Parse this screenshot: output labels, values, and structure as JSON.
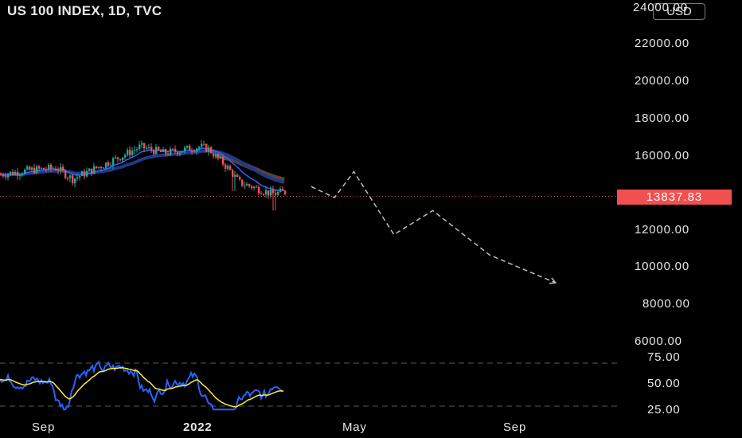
{
  "header": {
    "symbol_title": "US 100 INDEX, 1D, TVC"
  },
  "toolbar": {
    "currency_label": "USD"
  },
  "price_axis": {
    "ticks": [
      "24000.00",
      "22000.00",
      "20000.00",
      "18000.00",
      "16000.00",
      "12000.00",
      "10000.00",
      "8000.00",
      "6000.00"
    ],
    "last_price": "13837.83",
    "last_price_color": "#f0504f"
  },
  "rsi_axis": {
    "ticks": [
      "75.00",
      "50.00",
      "25.00"
    ]
  },
  "time_axis": {
    "labels": [
      "Sep",
      "2022",
      "May",
      "Sep"
    ]
  },
  "colors": {
    "background": "#000000",
    "up_candle": "#26a69a",
    "down_candle": "#ef5350",
    "ema_fast": "#2962ff",
    "ema_slow": "#1e3a8a",
    "sma_long": "#5d4037",
    "rsi_line": "#2962ff",
    "rsi_signal": "#ffeb3b",
    "projection": "#bdbdbd"
  },
  "chart_data": {
    "type": "candlestick",
    "title": "US 100 INDEX, 1D, TVC",
    "ylim": [
      6000,
      24000
    ],
    "last_price": 13837.83,
    "projection_path": [
      {
        "date": "2022-03-25",
        "value": 14400
      },
      {
        "date": "2022-04-12",
        "value": 13800
      },
      {
        "date": "2022-04-27",
        "value": 15200
      },
      {
        "date": "2022-05-28",
        "value": 11800
      },
      {
        "date": "2022-06-27",
        "value": 13100
      },
      {
        "date": "2022-08-10",
        "value": 10700
      },
      {
        "date": "2022-09-30",
        "value": 9200
      }
    ],
    "rsi": {
      "levels": [
        70,
        30
      ],
      "ylim": [
        25,
        75
      ]
    }
  }
}
